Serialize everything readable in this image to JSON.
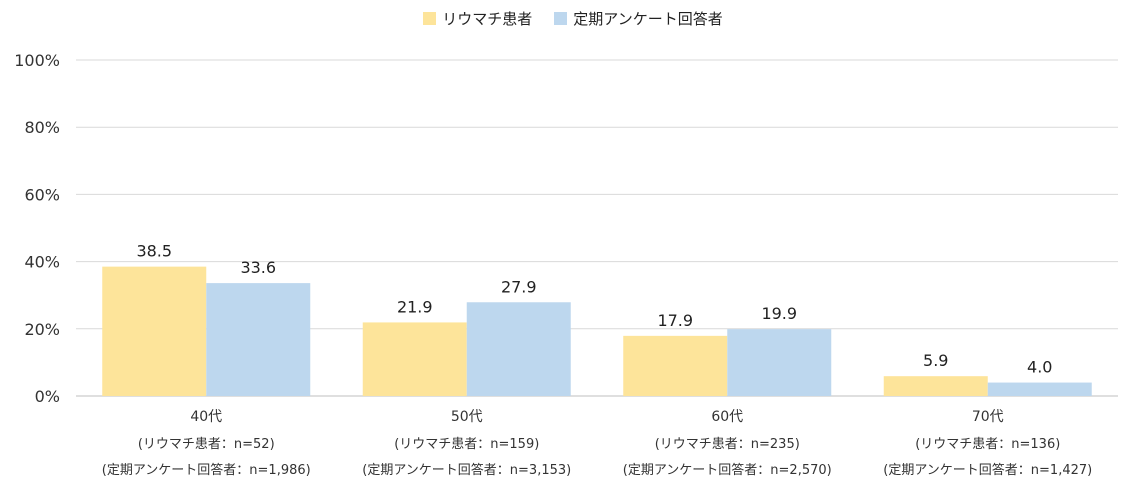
{
  "chart_data": {
    "type": "bar",
    "categories": [
      "40代",
      "50代",
      "60代",
      "70代"
    ],
    "category_sublabels": [
      [
        "(リウマチ患者：n=52)",
        "(定期アンケート回答者：n=1,986)"
      ],
      [
        "(リウマチ患者：n=159)",
        "(定期アンケート回答者：n=3,153)"
      ],
      [
        "(リウマチ患者：n=235)",
        "(定期アンケート回答者：n=2,570)"
      ],
      [
        "(リウマチ患者：n=136)",
        "(定期アンケート回答者：n=1,427)"
      ]
    ],
    "series": [
      {
        "name": "リウマチ患者",
        "values": [
          38.5,
          21.9,
          17.9,
          5.9
        ],
        "labels": [
          "38.5",
          "21.9",
          "17.9",
          "5.9"
        ],
        "color": "#fde49a"
      },
      {
        "name": "定期アンケート回答者",
        "values": [
          33.6,
          27.9,
          19.9,
          4.0
        ],
        "labels": [
          "33.6",
          "27.9",
          "19.9",
          "4.0"
        ],
        "color": "#bdd7ee"
      }
    ],
    "yticks": [
      "0%",
      "20%",
      "40%",
      "60%",
      "80%",
      "100%"
    ],
    "ylim": [
      0,
      100
    ],
    "grid": true,
    "legend_position": "top-center"
  }
}
